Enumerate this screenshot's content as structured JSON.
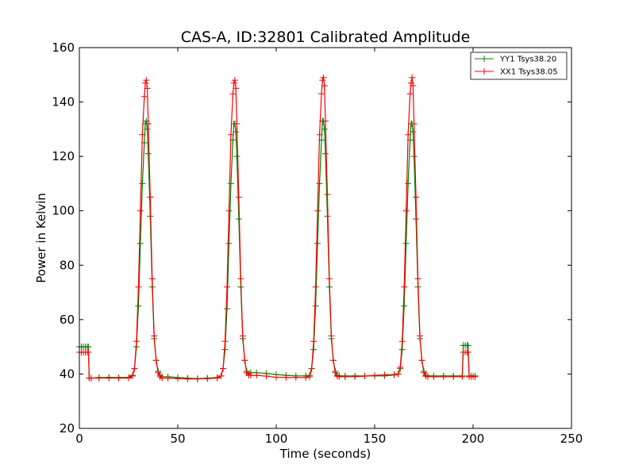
{
  "chart_data": {
    "type": "line",
    "title": "CAS-A, ID:32801 Calibrated Amplitude",
    "xlabel": "Time (seconds)",
    "ylabel": "Power in Kelvin",
    "xlim": [
      0,
      250
    ],
    "ylim": [
      20,
      160
    ],
    "x_ticks": [
      "0",
      "50",
      "100",
      "150",
      "200",
      "250"
    ],
    "y_ticks": [
      "20",
      "40",
      "60",
      "80",
      "100",
      "120",
      "140",
      "160"
    ],
    "grid": false,
    "legend_position": "top-right",
    "marker": "plus",
    "series": [
      {
        "name": "YY1 Tsys38.20",
        "color": "#008000",
        "x": [
          0,
          1,
          2,
          3,
          4,
          4.6,
          5,
          6,
          10,
          15,
          20,
          25,
          27,
          28,
          29,
          30,
          31,
          32,
          33,
          33.5,
          34,
          34.5,
          35,
          36,
          37,
          38,
          39,
          40,
          41,
          42,
          45,
          50,
          55,
          60,
          65,
          70,
          72,
          73,
          74,
          75,
          76,
          77,
          78,
          78.5,
          79,
          79.5,
          80,
          81,
          82,
          83,
          84,
          85,
          86,
          87,
          90,
          95,
          100,
          105,
          110,
          115,
          117,
          118,
          119,
          120,
          121,
          122,
          123,
          123.5,
          124,
          124.5,
          125,
          126,
          127,
          128,
          129,
          130,
          131,
          132,
          135,
          140,
          145,
          150,
          155,
          160,
          162,
          163,
          164,
          165,
          166,
          167,
          168,
          168.5,
          169,
          169.5,
          170,
          171,
          172,
          173,
          174,
          175,
          176,
          177,
          180,
          185,
          190,
          194.5,
          195,
          196,
          197,
          197.5,
          198,
          199,
          200,
          201
        ],
        "y": [
          50,
          50,
          50,
          50,
          50,
          50,
          38.5,
          38.5,
          38.7,
          38.8,
          38.7,
          38.8,
          39.5,
          42,
          50,
          65,
          88,
          110,
          125,
          132,
          133,
          130,
          121,
          98,
          72,
          53,
          45,
          41,
          39.5,
          39,
          39,
          38.7,
          38.5,
          38.3,
          38.5,
          38.7,
          39.3,
          42,
          49,
          64,
          88,
          110,
          126,
          132,
          132,
          129,
          120,
          97,
          72,
          53,
          45,
          41,
          40,
          40.5,
          40.5,
          40.2,
          39.8,
          39.5,
          39.3,
          39.3,
          39.5,
          42,
          49,
          65,
          88,
          110,
          126,
          133,
          133,
          130,
          121,
          98,
          72,
          53,
          45,
          41,
          39.5,
          39.3,
          39.3,
          39.3,
          39.3,
          39.3,
          39.3,
          39.6,
          40,
          42,
          49,
          65,
          88,
          110,
          126,
          132,
          132,
          129,
          120,
          97,
          72,
          53,
          45,
          41,
          39.5,
          39.3,
          39.3,
          39.3,
          39.3,
          39.3,
          50.5,
          50.5,
          50.5,
          50.5,
          39.3,
          39.3,
          39.3,
          39.3
        ]
      },
      {
        "name": "XX1 Tsys38.05",
        "color": "#ff0000",
        "x": [
          0,
          1,
          2,
          3,
          4,
          4.6,
          5,
          6,
          10,
          15,
          20,
          25,
          27,
          28,
          29,
          30,
          31,
          32,
          33,
          33.5,
          34,
          34.5,
          35,
          36,
          37,
          38,
          39,
          40,
          41,
          42,
          45,
          50,
          55,
          60,
          65,
          70,
          72,
          73,
          74,
          75,
          76,
          77,
          78,
          78.5,
          79,
          79.5,
          80,
          81,
          82,
          83,
          84,
          85,
          86,
          87,
          90,
          95,
          100,
          105,
          110,
          115,
          117,
          118,
          119,
          120,
          121,
          122,
          123,
          123.5,
          124,
          124.5,
          125,
          126,
          127,
          128,
          129,
          130,
          131,
          132,
          135,
          140,
          145,
          150,
          155,
          160,
          162,
          163,
          164,
          165,
          166,
          167,
          168,
          168.5,
          169,
          169.5,
          170,
          171,
          172,
          173,
          174,
          175,
          176,
          177,
          180,
          185,
          190,
          194.5,
          195,
          196,
          197,
          197.5,
          198,
          199,
          200,
          201
        ],
        "y": [
          48,
          48,
          48,
          48,
          48,
          48,
          38.5,
          38.5,
          38.5,
          38.5,
          38.5,
          38.5,
          39.3,
          42,
          52,
          72,
          100,
          128,
          142,
          147,
          148,
          145,
          132,
          105,
          75,
          54,
          45,
          40.5,
          39,
          38.5,
          38.5,
          38.3,
          38.2,
          38.2,
          38.3,
          38.5,
          39.3,
          42,
          52,
          72,
          100,
          128,
          143,
          147,
          148,
          145,
          132,
          105,
          75,
          54,
          45,
          40.5,
          39.5,
          39.5,
          39.5,
          39.2,
          38.8,
          38.7,
          38.7,
          38.7,
          39,
          42,
          52,
          72,
          100,
          128,
          143,
          148,
          149,
          146,
          133,
          106,
          75,
          54,
          45,
          40.5,
          39.2,
          39,
          39,
          39,
          39.2,
          39.5,
          39.7,
          39.8,
          40,
          42.5,
          52,
          72,
          100,
          128,
          143,
          147,
          149,
          146,
          132,
          105,
          75,
          54,
          45,
          40.5,
          39.2,
          39,
          39,
          39,
          39,
          39,
          48,
          48,
          48,
          48,
          39,
          39,
          39,
          39
        ]
      }
    ]
  }
}
